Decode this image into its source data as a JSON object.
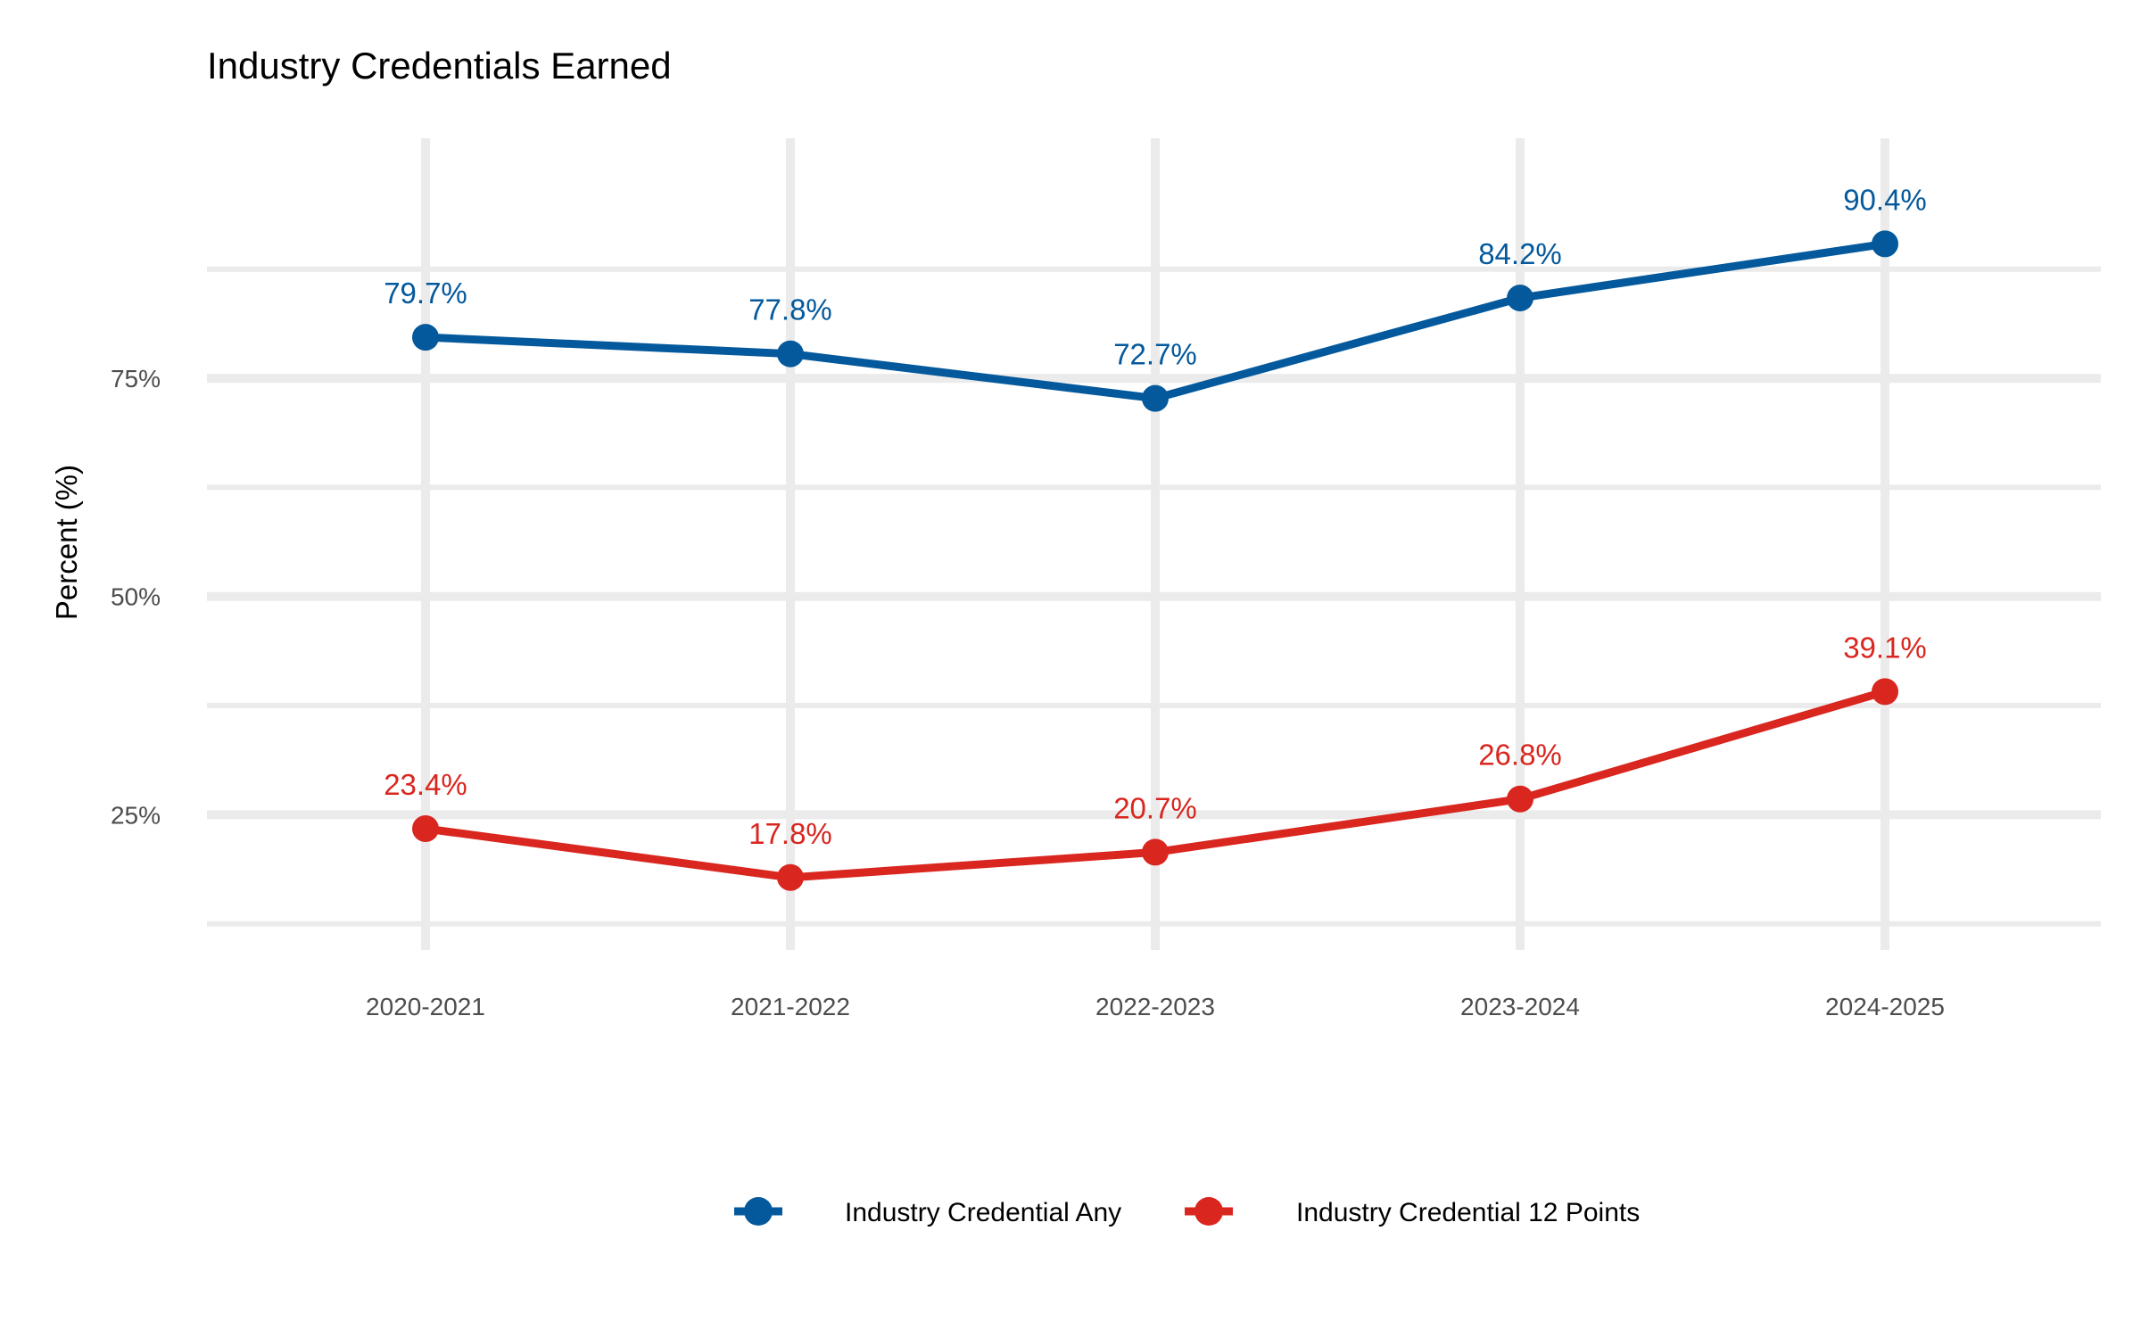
{
  "chart_data": {
    "type": "line",
    "title": "Industry Credentials Earned",
    "xlabel": "",
    "ylabel": "Percent (%)",
    "categories": [
      "2020-2021",
      "2021-2022",
      "2022-2023",
      "2023-2024",
      "2024-2025"
    ],
    "ylim": [
      9.5,
      102.5
    ],
    "y_ticks": [
      25,
      50,
      75
    ],
    "y_tick_labels": [
      "25%",
      "50%",
      "75%"
    ],
    "y_minor_ticks": [
      12.5,
      37.5,
      62.5,
      87.5
    ],
    "grid": true,
    "legend_position": "bottom",
    "series": [
      {
        "name": "Industry Credential Any",
        "color": "#04599c",
        "values": [
          79.7,
          77.8,
          72.7,
          84.2,
          90.4
        ],
        "labels": [
          "79.7%",
          "77.8%",
          "72.7%",
          "84.2%",
          "90.4%"
        ]
      },
      {
        "name": "Industry Credential 12 Points",
        "color": "#d9261f",
        "values": [
          23.4,
          17.8,
          20.7,
          26.8,
          39.1
        ],
        "labels": [
          "23.4%",
          "17.8%",
          "20.7%",
          "26.8%",
          "39.1%"
        ]
      }
    ]
  }
}
